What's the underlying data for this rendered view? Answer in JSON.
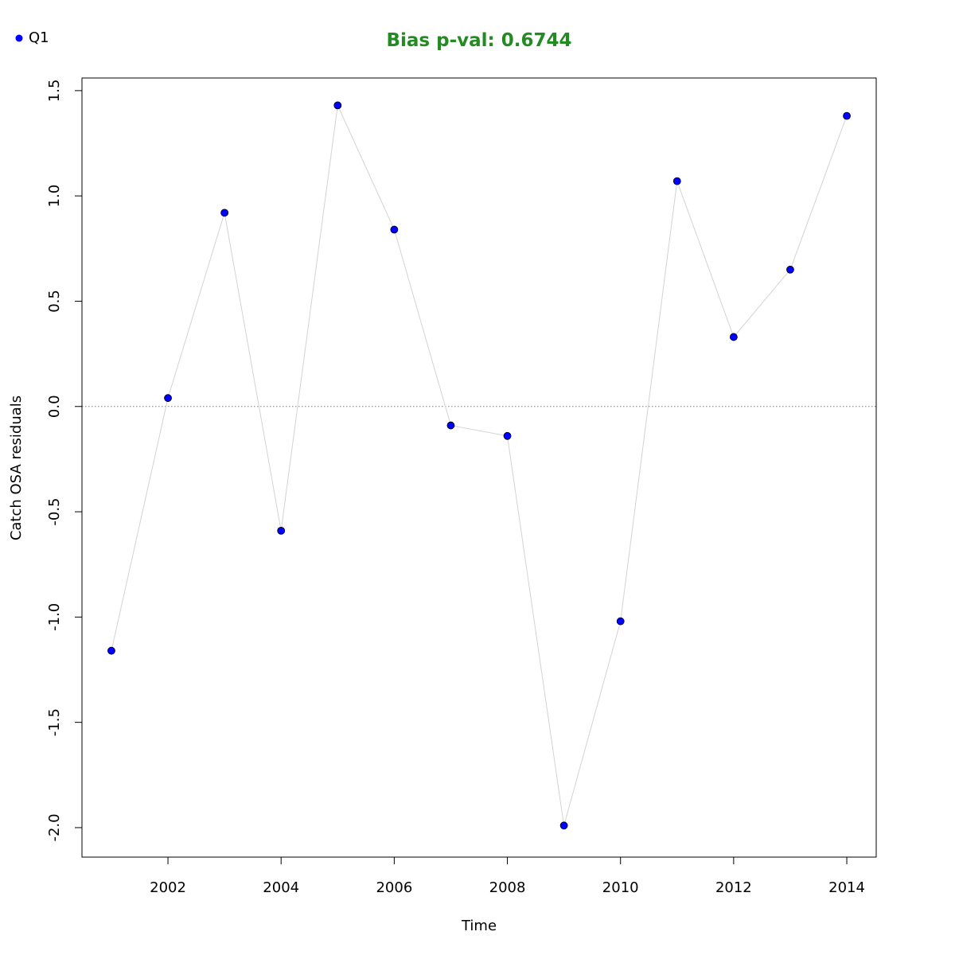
{
  "chart_data": {
    "type": "line",
    "title": "Bias p-val: 0.6744",
    "title_color": "#228b22",
    "xlabel": "Time",
    "ylabel": "Catch OSA residuals",
    "xlim": [
      2000.48,
      2014.52
    ],
    "ylim": [
      -2.14,
      1.56
    ],
    "x_ticks": [
      2002,
      2004,
      2006,
      2008,
      2010,
      2012,
      2014
    ],
    "x_tick_labels": [
      "2002",
      "2004",
      "2006",
      "2008",
      "2010",
      "2012",
      "2014"
    ],
    "y_ticks": [
      -2.0,
      -1.5,
      -1.0,
      -0.5,
      0.0,
      0.5,
      1.0,
      1.5
    ],
    "y_tick_labels": [
      "-2.0",
      "-1.5",
      "-1.0",
      "-0.5",
      "0.0",
      "0.5",
      "1.0",
      "1.5"
    ],
    "reference_line": {
      "y": 0.0,
      "style": "dotted",
      "color": "#808080"
    },
    "grid": false,
    "legend": {
      "placement": "top-left",
      "entries": [
        "Q1"
      ]
    },
    "series": [
      {
        "name": "Q1",
        "marker_color": "#0000ff",
        "line_color": "#d3d3d3",
        "x": [
          2001,
          2002,
          2003,
          2004,
          2005,
          2006,
          2007,
          2008,
          2009,
          2010,
          2011,
          2012,
          2013,
          2014
        ],
        "y": [
          -1.16,
          0.04,
          0.92,
          -0.59,
          1.43,
          0.84,
          -0.09,
          -0.14,
          -1.99,
          -1.02,
          1.07,
          0.33,
          0.65,
          1.38
        ]
      }
    ]
  }
}
